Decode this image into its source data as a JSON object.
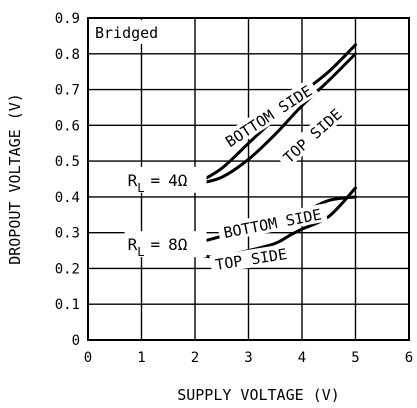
{
  "chart_data": {
    "type": "line",
    "inset_label": "Bridged",
    "xlabel": "SUPPLY VOLTAGE (V)",
    "ylabel": "DROPOUT VOLTAGE (V)",
    "xlim": [
      0,
      6
    ],
    "ylim": [
      0,
      0.9
    ],
    "x_ticks": [
      "0",
      "1",
      "2",
      "3",
      "4",
      "5",
      "6"
    ],
    "y_ticks": [
      "0",
      "0.1",
      "0.2",
      "0.3",
      "0.4",
      "0.5",
      "0.6",
      "0.7",
      "0.8",
      "0.9"
    ],
    "grid": true,
    "series": [
      {
        "name": "BOTTOM SIDE",
        "load": "R_L = 4Ω",
        "x": [
          2.0,
          2.5,
          3.0,
          3.5,
          4.0,
          4.5,
          5.0
        ],
        "y": [
          0.435,
          0.48,
          0.55,
          0.62,
          0.69,
          0.75,
          0.825
        ]
      },
      {
        "name": "TOP SIDE",
        "load": "R_L = 4Ω",
        "x": [
          2.0,
          2.5,
          3.0,
          3.5,
          4.0,
          4.5,
          5.0
        ],
        "y": [
          0.435,
          0.455,
          0.505,
          0.575,
          0.655,
          0.725,
          0.8
        ]
      },
      {
        "name": "BOTTOM SIDE",
        "load": "R_L = 8Ω",
        "x": [
          2.0,
          2.5,
          3.0,
          3.5,
          4.0,
          4.5,
          5.0
        ],
        "y": [
          0.27,
          0.29,
          0.31,
          0.33,
          0.355,
          0.39,
          0.4
        ]
      },
      {
        "name": "TOP SIDE",
        "load": "R_L = 8Ω",
        "x": [
          2.0,
          2.3,
          2.5,
          3.0,
          3.5,
          3.8,
          4.0,
          4.5,
          5.0
        ],
        "y": [
          0.24,
          0.232,
          0.235,
          0.25,
          0.27,
          0.295,
          0.31,
          0.345,
          0.425
        ]
      }
    ],
    "annotations": [
      {
        "text": "BOTTOM SIDE",
        "x": 3.38,
        "y": 0.625,
        "angle": -33
      },
      {
        "text": "TOP SIDE",
        "x": 4.2,
        "y": 0.57,
        "angle": -42
      },
      {
        "text": "BOTTOM SIDE",
        "x": 3.45,
        "y": 0.325,
        "angle": -11
      },
      {
        "text": "TOP SIDE",
        "x": 3.05,
        "y": 0.225,
        "angle": -9
      }
    ],
    "load_labels": [
      {
        "label": "R_L = 4Ω",
        "sym": "R",
        "sub": "L",
        "eq": "=",
        "val": "4Ω",
        "x": 1.45,
        "y": 0.445
      },
      {
        "label": "R_L = 8Ω",
        "sym": "R",
        "sub": "L",
        "eq": "=",
        "val": "8Ω",
        "x": 1.45,
        "y": 0.265
      }
    ]
  }
}
